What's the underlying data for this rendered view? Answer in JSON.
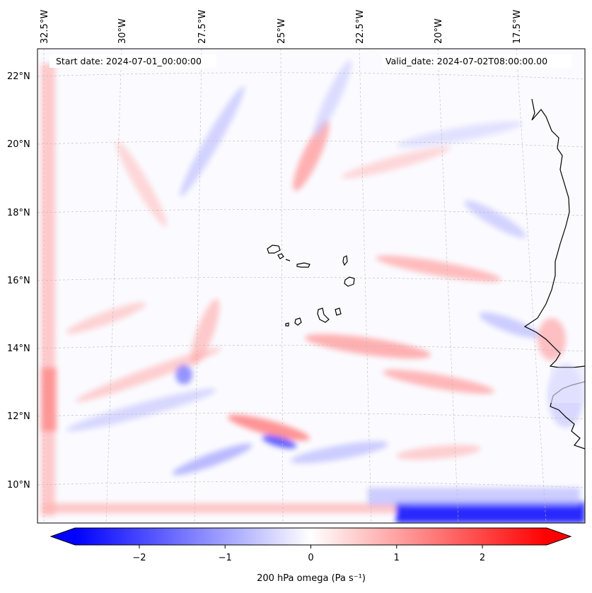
{
  "map": {
    "start_date": "Start date: 2024-07-01_00:00:00",
    "valid_date": "Valid_date: 2024-07-02T08:00:00.00",
    "lon_labels": [
      "32.5°W",
      "30°W",
      "27.5°W",
      "25°W",
      "22.5°W",
      "20°W",
      "17.5°W"
    ],
    "lat_labels": [
      "22°N",
      "20°N",
      "18°N",
      "16°N",
      "14°N",
      "12°N",
      "10°N"
    ],
    "colorbar": {
      "ticks": [
        "−2",
        "−1",
        "0",
        "1",
        "2"
      ],
      "label": "200 hPa omega (Pa s⁻¹)",
      "vmin": -2.75,
      "vmax": 2.75,
      "tick_values": [
        -2,
        -1,
        0,
        1,
        2
      ],
      "colormap": "bwr"
    },
    "colors": {
      "negative": "#0000ff",
      "positive": "#ff0000",
      "neutral": "#ffffff",
      "coastline": "#000000",
      "gridline": "#b0b0b0"
    }
  }
}
